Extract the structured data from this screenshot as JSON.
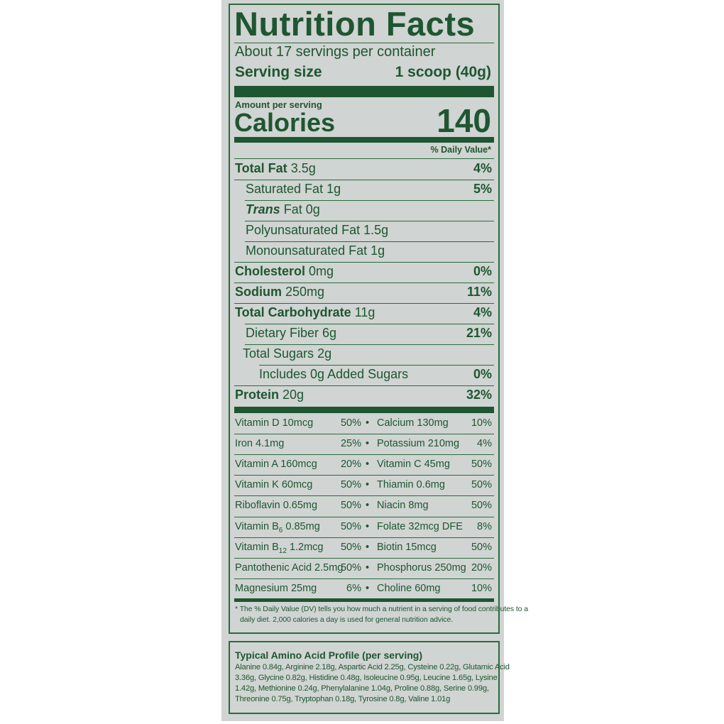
{
  "label": {
    "title": "Nutrition Facts",
    "servings": "About 17 servings per container",
    "serving_size_label": "Serving size",
    "serving_size_value": "1 scoop (40g)",
    "amount_per_serving": "Amount per serving",
    "calories_label": "Calories",
    "calories_value": "140",
    "dv_header": "% Daily Value*",
    "rows": [
      {
        "name": "Total Fat",
        "amount": "3.5g",
        "pct": "4%"
      },
      {
        "name": "Saturated Fat",
        "amount": "1g",
        "pct": "5%"
      },
      {
        "name": "Trans",
        "amount": "Fat 0g",
        "pct": ""
      },
      {
        "name": "Polyunsaturated Fat",
        "amount": "1.5g",
        "pct": ""
      },
      {
        "name": "Monounsaturated Fat",
        "amount": "1g",
        "pct": ""
      },
      {
        "name": "Cholesterol",
        "amount": "0mg",
        "pct": "0%"
      },
      {
        "name": "Sodium",
        "amount": "250mg",
        "pct": "11%"
      },
      {
        "name": "Total Carbohydrate",
        "amount": "11g",
        "pct": "4%"
      },
      {
        "name": "Dietary Fiber",
        "amount": "6g",
        "pct": "21%"
      },
      {
        "name": "Total Sugars",
        "amount": "2g",
        "pct": ""
      },
      {
        "name": "Includes 0g Added Sugars",
        "amount": "",
        "pct": "0%"
      },
      {
        "name": "Protein",
        "amount": "20g",
        "pct": "32%"
      }
    ],
    "vitamins": [
      {
        "l_name": "Vitamin D 10mcg",
        "l_pct": "50%",
        "r_name": "Calcium 130mg",
        "r_pct": "10%"
      },
      {
        "l_name": "Iron 4.1mg",
        "l_pct": "25%",
        "r_name": "Potassium 210mg",
        "r_pct": "4%"
      },
      {
        "l_name": "Vitamin A 160mcg",
        "l_pct": "20%",
        "r_name": "Vitamin C 45mg",
        "r_pct": "50%"
      },
      {
        "l_name": "Vitamin K 60mcg",
        "l_pct": "50%",
        "r_name": "Thiamin 0.6mg",
        "r_pct": "50%"
      },
      {
        "l_name": "Riboflavin 0.65mg",
        "l_pct": "50%",
        "r_name": "Niacin 8mg",
        "r_pct": "50%"
      },
      {
        "l_name": "Vitamin B",
        "l_sub": "6",
        "l_rest": " 0.85mg",
        "l_pct": "50%",
        "r_name": "Folate 32mcg DFE",
        "r_pct": "8%"
      },
      {
        "l_name": "Vitamin B",
        "l_sub": "12",
        "l_rest": " 1.2mcg",
        "l_pct": "50%",
        "r_name": "Biotin 15mcg",
        "r_pct": "50%"
      },
      {
        "l_name": "Pantothenic Acid 2.5mg",
        "l_pct": "50%",
        "r_name": "Phosphorus 250mg",
        "r_pct": "20%"
      },
      {
        "l_name": "Magnesium 25mg",
        "l_pct": "6%",
        "r_name": "Choline 60mg",
        "r_pct": "10%"
      }
    ],
    "bullet": "•",
    "footnote_1": "* The % Daily Value (DV) tells you how much a nutrient in a serving of food contributes to a",
    "footnote_2": "daily diet. 2,000 calories a day is used for general nutrition advice."
  },
  "amino": {
    "title": "Typical Amino Acid Profile (per serving)",
    "lines": [
      "Alanine 0.84g, Arginine 2.18g, Aspartic Acid 2.25g, Cysteine 0.22g, Glutamic Acid",
      "3.36g, Glycine 0.82g, Histidine 0.48g, Isoleucine 0.95g, Leucine 1.65g, Lysine",
      "1.42g, Methionine 0.24g, Phenylalanine 1.04g, Proline 0.88g, Serine 0.99g,",
      "Threonine 0.75g, Tryptophan 0.18g, Tyrosine 0.8g, Valine 1.01g"
    ]
  },
  "colors": {
    "ink": "#1e5631",
    "panel": "#d0d4d2",
    "background": "#ffffff"
  }
}
